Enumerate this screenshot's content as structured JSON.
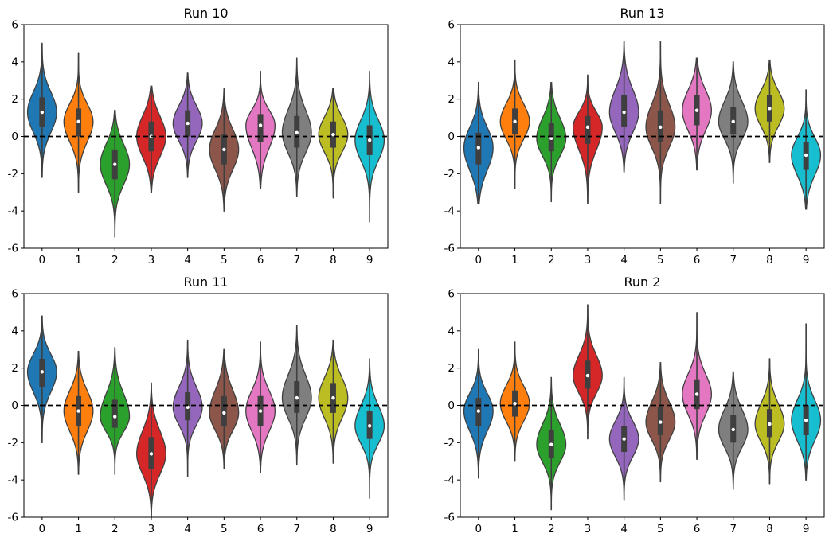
{
  "figure": {
    "layout": "2x2"
  },
  "palette": [
    "#1f77b4",
    "#ff7f0e",
    "#2ca02c",
    "#d62728",
    "#9467bd",
    "#8c564b",
    "#e377c2",
    "#7f7f7f",
    "#bcbd22",
    "#17becf"
  ],
  "chart_data": [
    {
      "type": "violin",
      "title": "Run 10",
      "categories": [
        "0",
        "1",
        "2",
        "3",
        "4",
        "5",
        "6",
        "7",
        "8",
        "9"
      ],
      "ylim": [
        -6,
        6
      ],
      "yticks": [
        "6",
        "4",
        "2",
        "0",
        "-2",
        "-4",
        "-6"
      ],
      "reference_line": 0,
      "violins": [
        {
          "min": -2.2,
          "q1": 0.5,
          "median": 1.3,
          "q3": 2.1,
          "max": 5.0
        },
        {
          "min": -3.0,
          "q1": 0.0,
          "median": 0.8,
          "q3": 1.5,
          "max": 4.5
        },
        {
          "min": -5.4,
          "q1": -2.3,
          "median": -1.5,
          "q3": -0.7,
          "max": 1.4
        },
        {
          "min": -3.0,
          "q1": -0.8,
          "median": 0.0,
          "q3": 0.8,
          "max": 2.7
        },
        {
          "min": -2.2,
          "q1": 0.0,
          "median": 0.7,
          "q3": 1.4,
          "max": 3.4
        },
        {
          "min": -4.0,
          "q1": -1.5,
          "median": -0.7,
          "q3": 0.1,
          "max": 2.6
        },
        {
          "min": -2.8,
          "q1": -0.3,
          "median": 0.6,
          "q3": 1.2,
          "max": 3.5
        },
        {
          "min": -3.2,
          "q1": -0.6,
          "median": 0.2,
          "q3": 1.1,
          "max": 4.2
        },
        {
          "min": -3.3,
          "q1": -0.6,
          "median": 0.1,
          "q3": 0.8,
          "max": 2.6
        },
        {
          "min": -4.6,
          "q1": -1.0,
          "median": -0.2,
          "q3": 0.6,
          "max": 3.5
        }
      ]
    },
    {
      "type": "violin",
      "title": "Run 13",
      "categories": [
        "0",
        "1",
        "2",
        "3",
        "4",
        "5",
        "6",
        "7",
        "8",
        "9"
      ],
      "ylim": [
        -6,
        6
      ],
      "yticks": [
        "6",
        "4",
        "2",
        "0",
        "-2",
        "-4",
        "-6"
      ],
      "reference_line": 0,
      "violins": [
        {
          "min": -3.6,
          "q1": -1.5,
          "median": -0.6,
          "q3": 0.2,
          "max": 2.9
        },
        {
          "min": -2.8,
          "q1": 0.1,
          "median": 0.8,
          "q3": 1.5,
          "max": 4.1
        },
        {
          "min": -3.5,
          "q1": -0.8,
          "median": -0.1,
          "q3": 0.7,
          "max": 2.9
        },
        {
          "min": -3.6,
          "q1": -0.4,
          "median": 0.5,
          "q3": 1.1,
          "max": 3.3
        },
        {
          "min": -1.9,
          "q1": 0.5,
          "median": 1.3,
          "q3": 2.2,
          "max": 5.1
        },
        {
          "min": -3.6,
          "q1": -0.3,
          "median": 0.5,
          "q3": 1.4,
          "max": 5.1
        },
        {
          "min": -1.8,
          "q1": 0.6,
          "median": 1.4,
          "q3": 2.2,
          "max": 4.2
        },
        {
          "min": -2.5,
          "q1": 0.1,
          "median": 0.8,
          "q3": 1.6,
          "max": 4.0
        },
        {
          "min": -1.4,
          "q1": 0.8,
          "median": 1.5,
          "q3": 2.2,
          "max": 4.1
        },
        {
          "min": -3.9,
          "q1": -1.8,
          "median": -1.0,
          "q3": -0.3,
          "max": 2.5
        }
      ]
    },
    {
      "type": "violin",
      "title": "Run 11",
      "categories": [
        "0",
        "1",
        "2",
        "3",
        "4",
        "5",
        "6",
        "7",
        "8",
        "9"
      ],
      "ylim": [
        -6,
        6
      ],
      "yticks": [
        "6",
        "4",
        "2",
        "0",
        "-2",
        "-4",
        "-6"
      ],
      "reference_line": 0,
      "violins": [
        {
          "min": -2.0,
          "q1": 1.0,
          "median": 1.8,
          "q3": 2.5,
          "max": 4.8
        },
        {
          "min": -3.7,
          "q1": -1.1,
          "median": -0.3,
          "q3": 0.5,
          "max": 2.9
        },
        {
          "min": -3.7,
          "q1": -1.2,
          "median": -0.6,
          "q3": 0.3,
          "max": 3.1
        },
        {
          "min": -6.0,
          "q1": -3.4,
          "median": -2.6,
          "q3": -1.7,
          "max": 1.2
        },
        {
          "min": -3.8,
          "q1": -0.8,
          "median": -0.1,
          "q3": 0.7,
          "max": 3.5
        },
        {
          "min": -3.4,
          "q1": -1.1,
          "median": -0.4,
          "q3": 0.5,
          "max": 3.0
        },
        {
          "min": -3.6,
          "q1": -1.1,
          "median": -0.3,
          "q3": 0.5,
          "max": 3.4
        },
        {
          "min": -3.2,
          "q1": -0.4,
          "median": 0.4,
          "q3": 1.3,
          "max": 4.3
        },
        {
          "min": -3.1,
          "q1": -0.4,
          "median": 0.4,
          "q3": 1.2,
          "max": 3.5
        },
        {
          "min": -5.0,
          "q1": -1.8,
          "median": -1.1,
          "q3": -0.3,
          "max": 2.5
        }
      ]
    },
    {
      "type": "violin",
      "title": "Run 2",
      "categories": [
        "0",
        "1",
        "2",
        "3",
        "4",
        "5",
        "6",
        "7",
        "8",
        "9"
      ],
      "ylim": [
        -6,
        6
      ],
      "yticks": [
        "6",
        "4",
        "2",
        "0",
        "-2",
        "-4",
        "-6"
      ],
      "reference_line": 0,
      "violins": [
        {
          "min": -3.9,
          "q1": -1.1,
          "median": -0.3,
          "q3": 0.4,
          "max": 3.0
        },
        {
          "min": -3.0,
          "q1": -0.6,
          "median": 0.1,
          "q3": 0.8,
          "max": 3.4
        },
        {
          "min": -5.6,
          "q1": -2.8,
          "median": -2.1,
          "q3": -1.3,
          "max": 1.5
        },
        {
          "min": -1.8,
          "q1": 0.9,
          "median": 1.6,
          "q3": 2.4,
          "max": 5.4
        },
        {
          "min": -5.1,
          "q1": -2.5,
          "median": -1.8,
          "q3": -1.1,
          "max": 1.5
        },
        {
          "min": -4.1,
          "q1": -1.6,
          "median": -0.9,
          "q3": -0.1,
          "max": 2.3
        },
        {
          "min": -2.9,
          "q1": -0.2,
          "median": 0.6,
          "q3": 1.4,
          "max": 5.0
        },
        {
          "min": -4.5,
          "q1": -2.0,
          "median": -1.3,
          "q3": -0.5,
          "max": 1.8
        },
        {
          "min": -4.2,
          "q1": -1.7,
          "median": -1.0,
          "q3": -0.2,
          "max": 2.5
        },
        {
          "min": -4.0,
          "q1": -1.6,
          "median": -0.8,
          "q3": 0.0,
          "max": 4.4
        }
      ]
    }
  ]
}
